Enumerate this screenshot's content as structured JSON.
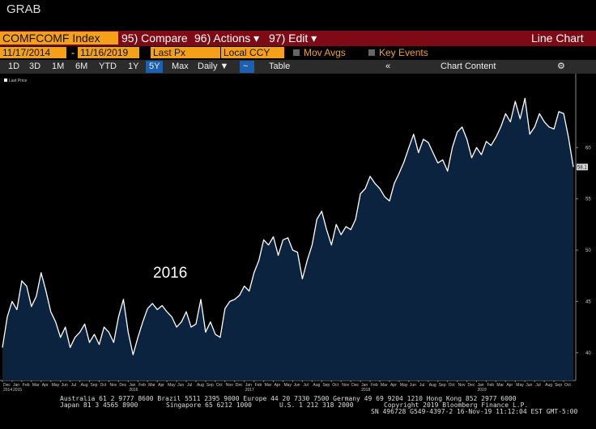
{
  "header": {
    "title": "GRAB"
  },
  "toolbar": {
    "security": "COMFCOMF Index",
    "compare": "95) Compare",
    "actions": "96) Actions ▾",
    "edit": "97) Edit ▾",
    "view": "Line Chart"
  },
  "range": {
    "start": "11/17/2014",
    "sep": "-",
    "end": "11/16/2019",
    "field": "Last Px",
    "currency": "Local CCY",
    "mov_avgs": "Mov Avgs",
    "key_events": "Key Events"
  },
  "periods": [
    "1D",
    "3D",
    "1M",
    "6M",
    "YTD",
    "1Y",
    "5Y",
    "Max"
  ],
  "selected_period": 6,
  "frequency": "Daily ▼",
  "table": "Table",
  "chart_content": "Chart Content",
  "chart_data": {
    "type": "line",
    "annotation": "2016",
    "categories": [
      "Dec",
      null,
      "Jan",
      null,
      "Feb",
      null,
      "Mar",
      null,
      "Apr",
      null,
      "May",
      null,
      "Jun",
      null,
      "Jul",
      null,
      "Aug",
      null,
      "Sep",
      null,
      "Oct",
      null,
      "Nov",
      null,
      "Dec",
      null,
      "Jan",
      null,
      "Feb",
      null,
      "Mar",
      null,
      "Apr",
      null,
      "May",
      null,
      "Jun",
      null,
      "Jul",
      null,
      "Aug",
      null,
      "Sep",
      null,
      "Oct",
      null,
      "Nov",
      null,
      "Dec",
      null,
      "Jan",
      null,
      "Feb",
      null,
      "Mar",
      null,
      "Apr",
      null,
      "May",
      null,
      "Jun",
      null,
      "Jul",
      null,
      "Aug",
      null,
      "Sep",
      null,
      "Oct",
      null,
      "Nov",
      null,
      "Dec",
      null,
      "Jan",
      null,
      "Feb",
      null,
      "Mar",
      null,
      "Apr",
      null,
      "May",
      null,
      "Jun",
      null,
      "Jul",
      null,
      "Aug",
      null,
      "Sep",
      null,
      "Oct",
      null,
      "Nov",
      null,
      "Dec",
      null,
      "Jan",
      null,
      "Feb",
      null,
      "Mar",
      null,
      "Apr",
      null,
      "May",
      null,
      "Jun",
      null,
      "Jul",
      null,
      "Aug",
      null,
      "Sep",
      null,
      "Oct",
      null,
      null
    ],
    "year_labels": [
      "2014",
      null,
      "2015",
      null,
      null,
      null,
      null,
      null,
      null,
      null,
      null,
      null,
      null,
      null,
      null,
      null,
      null,
      null,
      null,
      null,
      null,
      null,
      null,
      null,
      null,
      null,
      "2016",
      null,
      null,
      null,
      null,
      null,
      null,
      null,
      null,
      null,
      null,
      null,
      null,
      null,
      null,
      null,
      null,
      null,
      null,
      null,
      null,
      null,
      null,
      null,
      "2017",
      null,
      null,
      null,
      null,
      null,
      null,
      null,
      null,
      null,
      null,
      null,
      null,
      null,
      null,
      null,
      null,
      null,
      null,
      null,
      null,
      null,
      null,
      null,
      "2018",
      null,
      null,
      null,
      null,
      null,
      null,
      null,
      null,
      null,
      null,
      null,
      null,
      null,
      null,
      null,
      null,
      null,
      null,
      null,
      null,
      null,
      null,
      null,
      "2019",
      null,
      null,
      null,
      null,
      null,
      null,
      null,
      null,
      null,
      null,
      null,
      null,
      null,
      null,
      null,
      null,
      null,
      null,
      null,
      null
    ],
    "series": [
      {
        "name": "Last Price",
        "color": "#ffffff",
        "fill": "#0c2340",
        "values": [
          40.5,
          43.5,
          45.0,
          44.2,
          47.0,
          46.5,
          44.5,
          45.5,
          47.8,
          46.0,
          44.0,
          43.0,
          41.5,
          42.5,
          40.5,
          41.5,
          42.0,
          42.8,
          41.0,
          41.8,
          40.8,
          42.5,
          42.0,
          41.0,
          43.5,
          45.2,
          42.0,
          39.8,
          41.5,
          43.0,
          44.3,
          44.8,
          44.2,
          44.6,
          44.0,
          43.5,
          42.5,
          43.0,
          44.0,
          42.5,
          42.8,
          45.2,
          42.0,
          43.0,
          41.8,
          41.5,
          44.3,
          45.0,
          45.2,
          45.6,
          46.5,
          46.0,
          47.8,
          49.0,
          51.0,
          50.5,
          51.3,
          49.5,
          51.0,
          51.2,
          50.0,
          49.8,
          47.2,
          49.0,
          50.5,
          53.0,
          53.8,
          52.0,
          50.5,
          52.5,
          51.5,
          52.3,
          52.0,
          53.0,
          55.5,
          56.0,
          57.2,
          56.5,
          56.0,
          55.2,
          54.8,
          56.5,
          57.5,
          58.6,
          60.0,
          61.3,
          59.5,
          60.8,
          60.5,
          59.5,
          58.5,
          58.8,
          57.7,
          60.0,
          61.5,
          62.0,
          60.8,
          59.0,
          60.0,
          59.3,
          60.6,
          60.2,
          61.0,
          62.0,
          63.3,
          62.5,
          64.5,
          62.8,
          64.8,
          61.3,
          62.0,
          63.3,
          62.5,
          62.0,
          61.8,
          63.5,
          63.3,
          61.0,
          58.1
        ]
      }
    ],
    "ylim": [
      37.3,
      67.2
    ],
    "yticks": [
      40,
      45,
      50,
      55,
      60
    ],
    "grid": false
  },
  "footer": {
    "line1": "Australia 61 2 9777 8600 Brazil 5511 2395 9000 Europe 44 20 7330 7500 Germany 49 69 9204 1210 Hong Kong 852 2977 6000",
    "japan": "Japan 81 3 4565 8900",
    "singapore": "Singapore 65 6212 1000",
    "us": "U.S. 1 212 318 2000",
    "copyright": "Copyright 2019 Bloomberg Finance L.P.",
    "session": "SN 496728 G549-4397-2 16-Nov-19 11:12:04 EST  GMT-5:00"
  }
}
